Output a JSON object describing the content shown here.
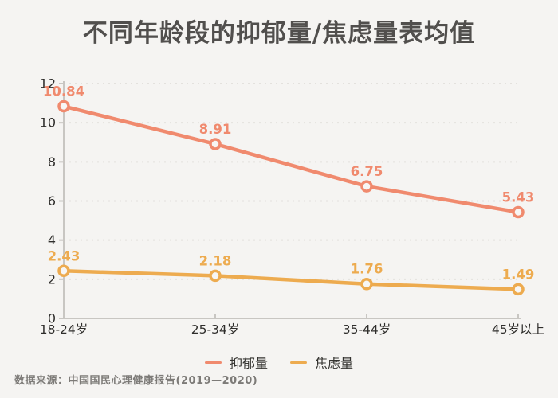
{
  "chart_data": {
    "type": "line",
    "title": "不同年龄段的抑郁量/焦虑量表均值",
    "categories": [
      "18-24岁",
      "25-34岁",
      "35-44岁",
      "45岁以上"
    ],
    "series": [
      {
        "name": "抑郁量",
        "values": [
          10.84,
          8.91,
          6.75,
          5.43
        ],
        "color": "#F08A6E"
      },
      {
        "name": "焦虑量",
        "values": [
          2.43,
          2.18,
          1.76,
          1.49
        ],
        "color": "#EDAB4F"
      }
    ],
    "ylim": [
      0,
      12
    ],
    "ytick_step": 2,
    "xlabel": "",
    "ylabel": "",
    "grid": "dotted-horizontal",
    "legend_position": "bottom",
    "marker": "open-circle",
    "data_labels": true
  },
  "footer": {
    "source": "数据来源：中国国民心理健康报告(2019—2020)"
  },
  "colors": {
    "background": "#F5F4F2",
    "axis": "#C8C6C2",
    "gridline": "#E3E1DD",
    "tick_text": "#2E2D2B",
    "title_text": "#514F4D",
    "footer_text": "#7D7B78"
  }
}
